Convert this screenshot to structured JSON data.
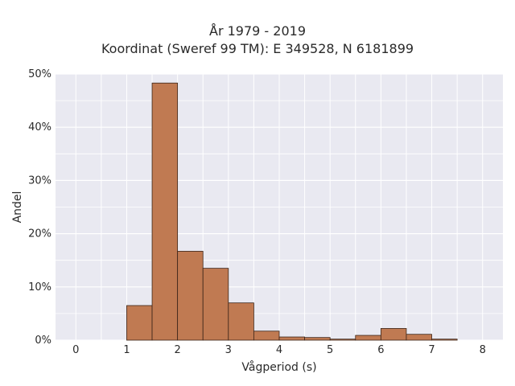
{
  "chart_data": {
    "type": "bar",
    "title_lines": [
      "År 1979 - 2019",
      "Koordinat (Sweref 99 TM): E 349528, N 6181899"
    ],
    "xlabel": "Vågperiod (s)",
    "ylabel": "Andel",
    "xlim": [
      -0.4,
      8.4
    ],
    "ylim": [
      0,
      50
    ],
    "xticks": [
      0,
      1,
      2,
      3,
      4,
      5,
      6,
      7,
      8
    ],
    "yticks": [
      0,
      10,
      20,
      30,
      40,
      50
    ],
    "ytick_labels": [
      "0%",
      "10%",
      "20%",
      "30%",
      "40%",
      "50%"
    ],
    "bin_width": 0.5,
    "bins_start": [
      1.0,
      1.5,
      2.0,
      2.5,
      3.0,
      3.5,
      4.0,
      4.5,
      5.0,
      5.5,
      6.0,
      6.5,
      7.0
    ],
    "values": [
      6.5,
      48.3,
      16.7,
      13.5,
      7.0,
      1.7,
      0.6,
      0.5,
      0.2,
      0.9,
      2.2,
      1.1,
      0.2
    ],
    "grid": true,
    "colors": {
      "bar": "#c07a52",
      "bar_edge": "#3b2418",
      "plot_bg": "#e9e9f1",
      "grid": "#ffffff"
    }
  }
}
